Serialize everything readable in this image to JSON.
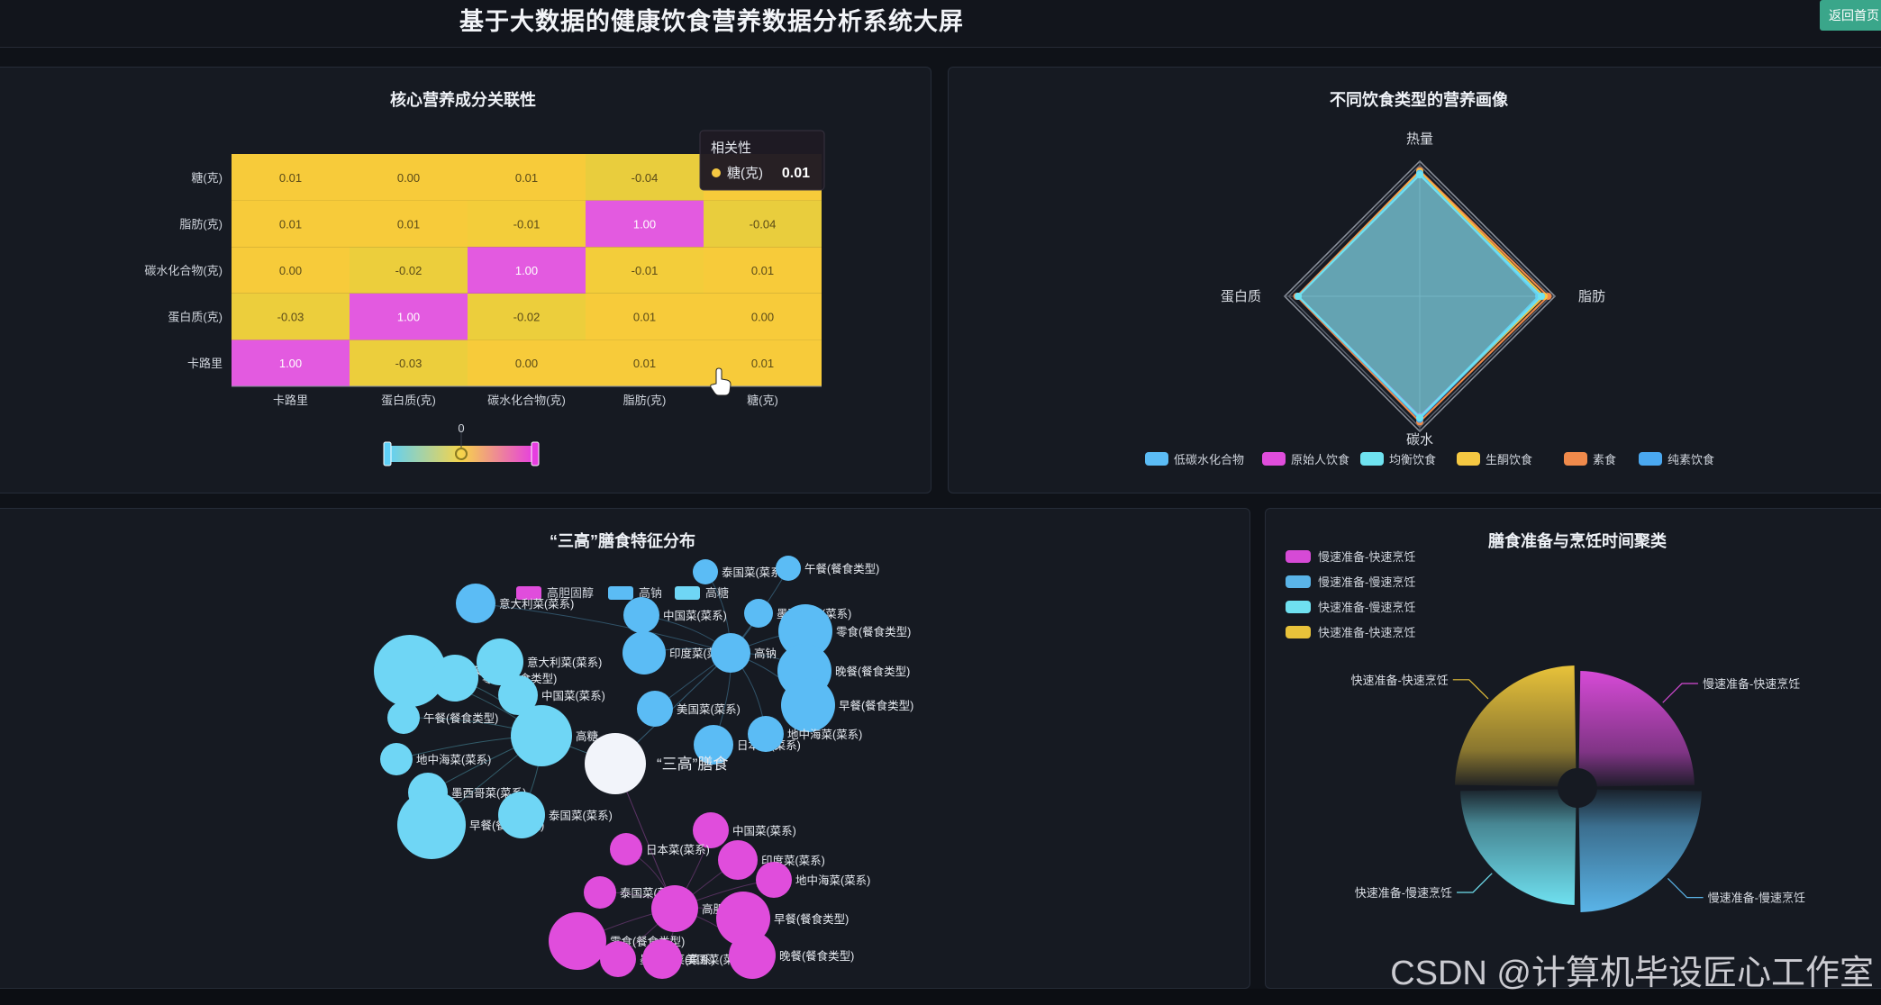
{
  "header": {
    "title": "基于大数据的健康饮食营养数据分析系统大屏",
    "back_label": "返回首页"
  },
  "watermark": "CSDN @计算机毕设匠心工作室",
  "heatmap_panel": {
    "title": "核心营养成分关联性"
  },
  "radar_panel": {
    "title": "不同饮食类型的营养画像"
  },
  "graph_panel": {
    "title": "“三高”膳食特征分布"
  },
  "pie_panel": {
    "title": "膳食准备与烹饪时间聚类"
  },
  "colors": {
    "bg": "#0f1218",
    "panel": "#161a22",
    "magenta": "#e04ddc",
    "cyan": "#6fd6f5",
    "yellow": "#f5c842",
    "orange": "#f08a4b",
    "blue": "#5bbcf5",
    "white": "#f2f4fa"
  },
  "chart_data": [
    {
      "type": "heatmap",
      "title": "核心营养成分关联性",
      "x": [
        "卡路里",
        "蛋白质(克)",
        "碳水化合物(克)",
        "脂肪(克)",
        "糖(克)"
      ],
      "y": [
        "卡路里",
        "蛋白质(克)",
        "碳水化合物(克)",
        "脂肪(克)",
        "糖(克)"
      ],
      "values": [
        [
          1.0,
          -0.03,
          0.0,
          0.01,
          0.01
        ],
        [
          -0.03,
          1.0,
          -0.02,
          0.01,
          0.0
        ],
        [
          0.0,
          -0.02,
          1.0,
          -0.01,
          0.01
        ],
        [
          0.01,
          0.01,
          -0.01,
          1.0,
          -0.04
        ],
        [
          0.01,
          0.0,
          0.01,
          -0.04,
          0.01
        ]
      ],
      "labels": [
        [
          "1.00",
          "-0.03",
          "0.00",
          "0.01",
          "0.01"
        ],
        [
          "-0.03",
          "1.00",
          "-0.02",
          "0.01",
          "0.00"
        ],
        [
          "0.00",
          "-0.02",
          "1.00",
          "-0.01",
          "0.01"
        ],
        [
          "0.01",
          "0.01",
          "-0.01",
          "1.00",
          "-0.04"
        ],
        [
          "0.01",
          "0.00",
          "0.01",
          "-0.04",
          ""
        ]
      ],
      "visualmap_value": "0",
      "tooltip": {
        "title": "相关性",
        "name": "糖(克)",
        "value": "0.01"
      }
    },
    {
      "type": "radar",
      "title": "不同饮食类型的营养画像",
      "indicators": [
        "热量",
        "脂肪",
        "碳水",
        "蛋白质"
      ],
      "series": [
        {
          "name": "低碳水化合物",
          "color": "#5bbcf5",
          "values": [
            0.91,
            0.88,
            0.9,
            0.9
          ]
        },
        {
          "name": "原始人饮食",
          "color": "#e04ddc",
          "values": [
            0.9,
            0.9,
            0.89,
            0.9
          ]
        },
        {
          "name": "均衡饮食",
          "color": "#6fe3f0",
          "values": [
            0.9,
            0.9,
            0.9,
            0.9
          ]
        },
        {
          "name": "生酮饮食",
          "color": "#f5c842",
          "values": [
            0.92,
            0.92,
            0.9,
            0.9
          ]
        },
        {
          "name": "素食",
          "color": "#f08a4b",
          "values": [
            0.93,
            0.95,
            0.93,
            0.91
          ]
        },
        {
          "name": "纯素饮食",
          "color": "#4aa8f0",
          "values": [
            0.9,
            0.9,
            0.91,
            0.9
          ]
        }
      ]
    },
    {
      "type": "graph",
      "title": "“三高”膳食特征分布",
      "legend": [
        {
          "name": "高胆固醇",
          "color": "#e04ddc"
        },
        {
          "name": "高钠",
          "color": "#5bbcf5"
        },
        {
          "name": "高糖",
          "color": "#6fd6f5"
        }
      ],
      "center": "“三高”膳食",
      "nodes": [
        {
          "label": "泰国菜(菜系)",
          "color": "#5bbcf5"
        },
        {
          "label": "午餐(餐食类型)",
          "color": "#5bbcf5"
        },
        {
          "label": "意大利菜(菜系)",
          "color": "#5bbcf5"
        },
        {
          "label": "中国菜(菜系)",
          "color": "#5bbcf5"
        },
        {
          "label": "墨西哥菜(菜系)",
          "color": "#5bbcf5"
        },
        {
          "label": "零食(餐食类型)",
          "color": "#5bbcf5"
        },
        {
          "label": "印度菜(菜系)",
          "color": "#5bbcf5"
        },
        {
          "label": "高钠",
          "color": "#5bbcf5"
        },
        {
          "label": "晚餐(餐食类型)",
          "color": "#5bbcf5"
        },
        {
          "label": "美国菜(菜系)",
          "color": "#5bbcf5"
        },
        {
          "label": "早餐(餐食类型)",
          "color": "#5bbcf5"
        },
        {
          "label": "日本菜(菜系)",
          "color": "#5bbcf5"
        },
        {
          "label": "地中海菜(菜系)",
          "color": "#5bbcf5"
        },
        {
          "label": "美国菜(菜系)",
          "color": "#6fd6f5"
        },
        {
          "label": "零食(餐食类型)",
          "color": "#6fd6f5"
        },
        {
          "label": "意大利菜(菜系)",
          "color": "#6fd6f5"
        },
        {
          "label": "中国菜(菜系)",
          "color": "#6fd6f5"
        },
        {
          "label": "高糖",
          "color": "#6fd6f5"
        },
        {
          "label": "午餐(餐食类型)",
          "color": "#6fd6f5"
        },
        {
          "label": "地中海菜(菜系)",
          "color": "#6fd6f5"
        },
        {
          "label": "墨西哥菜(菜系)",
          "color": "#6fd6f5"
        },
        {
          "label": "早餐(餐食类型)",
          "color": "#6fd6f5"
        },
        {
          "label": "泰国菜(菜系)",
          "color": "#6fd6f5"
        },
        {
          "label": "中国菜(菜系)",
          "color": "#e04ddc"
        },
        {
          "label": "日本菜(菜系)",
          "color": "#e04ddc"
        },
        {
          "label": "印度菜(菜系)",
          "color": "#e04ddc"
        },
        {
          "label": "地中海菜(菜系)",
          "color": "#e04ddc"
        },
        {
          "label": "泰国菜(菜系)",
          "color": "#e04ddc"
        },
        {
          "label": "高胆固醇",
          "color": "#e04ddc"
        },
        {
          "label": "早餐(餐食类型)",
          "color": "#e04ddc"
        },
        {
          "label": "零食(餐食类型)",
          "color": "#e04ddc"
        },
        {
          "label": "墨西哥菜(菜系)",
          "color": "#e04ddc"
        },
        {
          "label": "美国菜(菜系)",
          "color": "#e04ddc"
        },
        {
          "label": "晚餐(餐食类型)",
          "color": "#e04ddc"
        }
      ]
    },
    {
      "type": "pie",
      "title": "膳食准备与烹饪时间聚类",
      "legend_position": "top-left",
      "series": [
        {
          "name": "慢速准备-快速烹饪",
          "value": 25,
          "color": "#d64ad6"
        },
        {
          "name": "慢速准备-慢速烹饪",
          "value": 25,
          "color": "#5ab4e8"
        },
        {
          "name": "快速准备-慢速烹饪",
          "value": 25,
          "color": "#6fe0f0"
        },
        {
          "name": "快速准备-快速烹饪",
          "value": 25,
          "color": "#e8c23a"
        }
      ]
    }
  ]
}
